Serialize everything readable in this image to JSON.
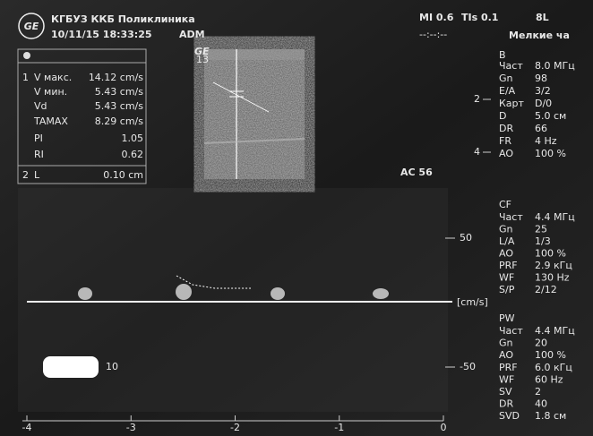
{
  "header": {
    "institution": "КГБУЗ ККБ Поликлиника",
    "datetime": "10/11/15 18:33:25",
    "operator": "ADM",
    "mi": "MI 0.6",
    "tis": "TIs 0.1",
    "probe": "8L",
    "timer": "--:--:--",
    "preset": "Мелкие ча"
  },
  "logo": "GE",
  "probe_mark": {
    "brand": "GE",
    "code": "13"
  },
  "measurements": {
    "groups": [
      {
        "index": "1",
        "rows": [
          [
            "V макс.",
            "14.12 cm/s"
          ],
          [
            "V мин.",
            "5.43 cm/s"
          ],
          [
            "Vd",
            "5.43 cm/s"
          ],
          [
            "TAMAX",
            "8.29 cm/s"
          ],
          [
            "PI",
            "1.05"
          ],
          [
            "RI",
            "0.62"
          ]
        ]
      },
      {
        "index": "2",
        "rows": [
          [
            "L",
            "0.10 cm"
          ]
        ]
      }
    ]
  },
  "image_annotation": "AC 56",
  "depth_scale": [
    "2",
    "4"
  ],
  "velocity_scale": {
    "top": "50",
    "unit": "[cm/s]",
    "bottom": "-50"
  },
  "time_axis": [
    "-4",
    "-3",
    "-2",
    "-1",
    "0"
  ],
  "masked_label": "10",
  "settings": [
    {
      "title": "B",
      "rows": [
        [
          "Част",
          "8.0 МГц"
        ],
        [
          "Gn",
          "98"
        ],
        [
          "E/A",
          "3/2"
        ],
        [
          "Карт",
          "D/0"
        ],
        [
          "D",
          "5.0 см"
        ],
        [
          "DR",
          "66"
        ],
        [
          "FR",
          "4 Hz"
        ],
        [
          "AO",
          "100 %"
        ]
      ]
    },
    {
      "title": "CF",
      "rows": [
        [
          "Част",
          "4.4 МГц"
        ],
        [
          "Gn",
          "25"
        ],
        [
          "L/A",
          "1/3"
        ],
        [
          "AO",
          "100 %"
        ],
        [
          "PRF",
          "2.9 кГц"
        ],
        [
          "WF",
          "130 Hz"
        ],
        [
          "S/P",
          "2/12"
        ]
      ]
    },
    {
      "title": "PW",
      "rows": [
        [
          "Част",
          "4.4 МГц"
        ],
        [
          "Gn",
          "20"
        ],
        [
          "AO",
          "100 %"
        ],
        [
          "PRF",
          "6.0 кГц"
        ],
        [
          "WF",
          "60 Hz"
        ],
        [
          "SV",
          "2"
        ],
        [
          "DR",
          "40"
        ],
        [
          "SVD",
          "1.8 см"
        ]
      ]
    }
  ]
}
